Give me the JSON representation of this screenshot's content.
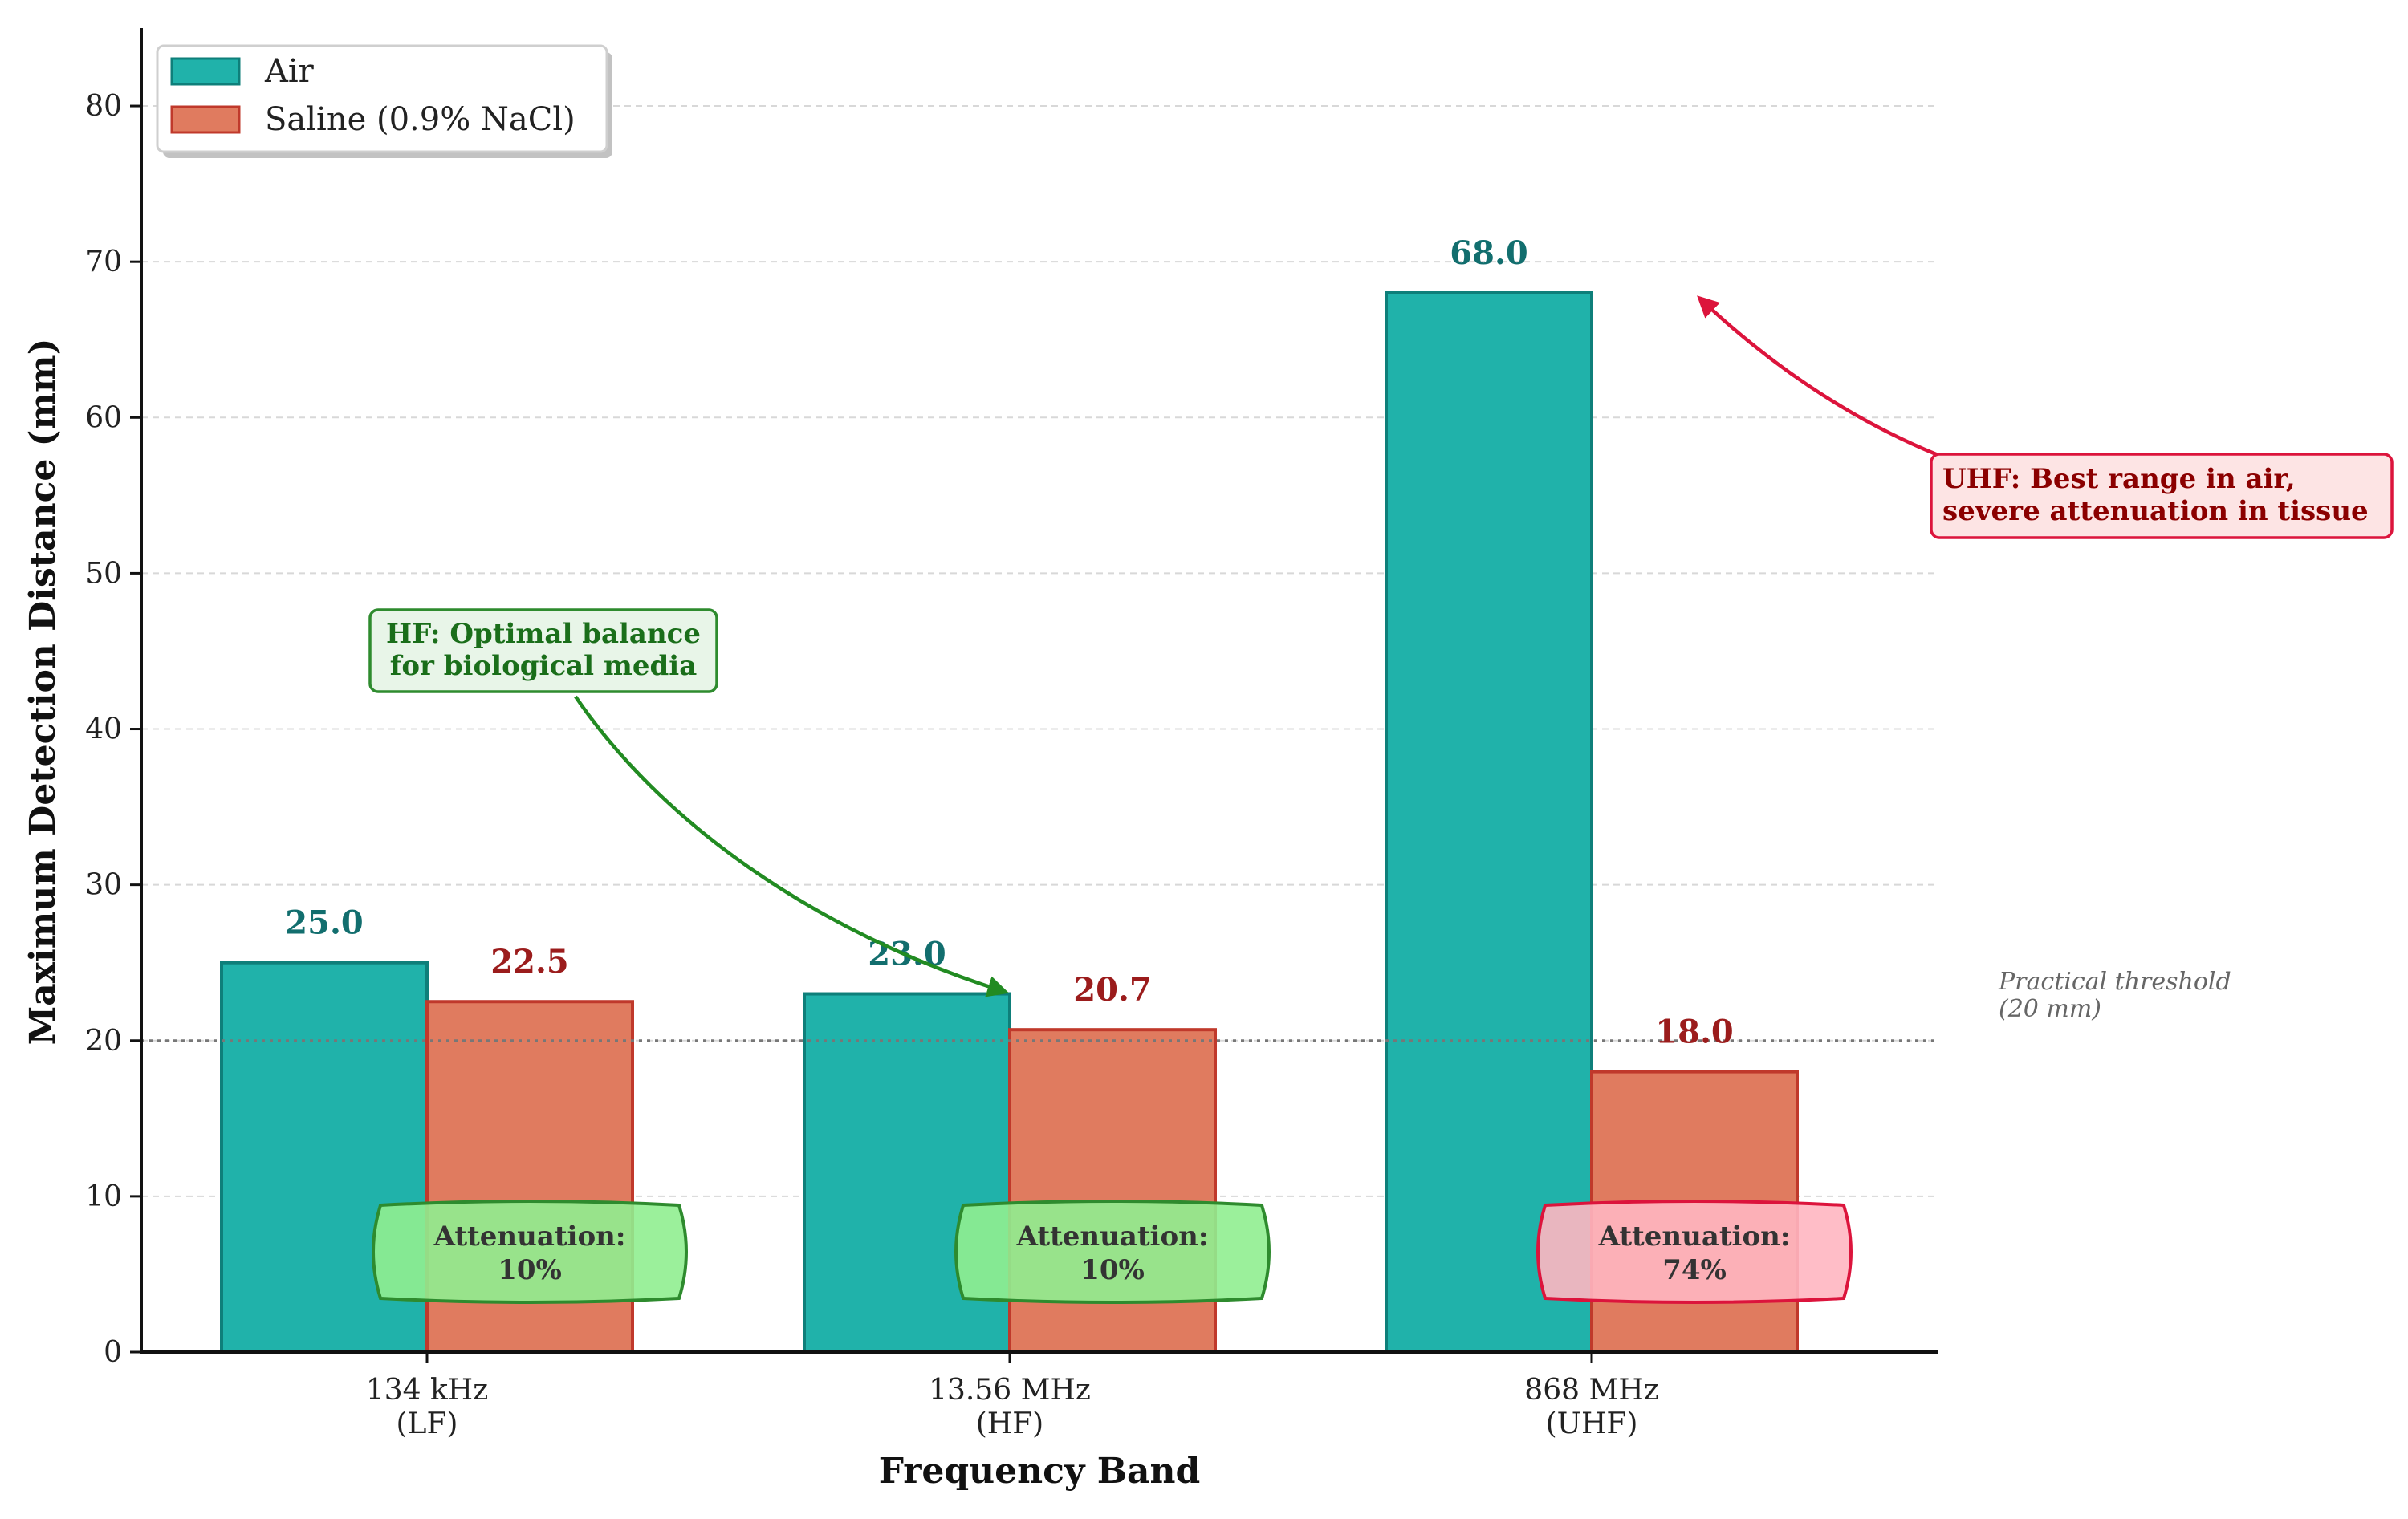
{
  "chart_data": {
    "type": "bar",
    "categories": [
      {
        "line1": "134 kHz",
        "line2": "(LF)"
      },
      {
        "line1": "13.56 MHz",
        "line2": "(HF)"
      },
      {
        "line1": "868 MHz",
        "line2": "(UHF)"
      }
    ],
    "series": [
      {
        "name": "Air",
        "values": [
          25.0,
          23.0,
          68.0
        ],
        "color": "#20b2aa",
        "edge": "#0e7f7a",
        "label_color": "#126e6e"
      },
      {
        "name": "Saline (0.9% NaCl)",
        "values": [
          22.5,
          20.7,
          18.0
        ],
        "color": "#e07b5f",
        "edge": "#c0392b",
        "label_color": "#9b1c1c"
      }
    ],
    "value_labels": [
      [
        "25.0",
        "23.0",
        "68.0"
      ],
      [
        "22.5",
        "20.7",
        "18.0"
      ]
    ],
    "xlabel": "Frequency Band",
    "ylabel": "Maximum Detection Distance (mm)",
    "ylim": [
      0,
      85
    ],
    "yticks": [
      0,
      10,
      20,
      30,
      40,
      50,
      60,
      70,
      80
    ],
    "grid": true,
    "legend_position": "top-left",
    "threshold": {
      "value": 20,
      "label_line1": "Practical threshold",
      "label_line2": "(20 mm)"
    },
    "attenuation_badges": [
      {
        "line1": "Attenuation:",
        "line2": "10%",
        "fill": "#90ee90",
        "stroke": "#2e8b2e"
      },
      {
        "line1": "Attenuation:",
        "line2": "10%",
        "fill": "#90ee90",
        "stroke": "#2e8b2e"
      },
      {
        "line1": "Attenuation:",
        "line2": "74%",
        "fill": "#ffb6c1",
        "stroke": "#dc143c"
      }
    ],
    "annotations": [
      {
        "line1": "HF: Optimal balance",
        "line2": "for biological media",
        "text_color": "#1a6e1a",
        "box_fill": "#e8f5e8",
        "box_stroke": "#2e8b2e",
        "arrow_color": "#228b22"
      },
      {
        "line1": "UHF: Best range in air,",
        "line2": "severe attenuation in tissue",
        "text_color": "#8b0000",
        "box_fill": "#fde4e4",
        "box_stroke": "#dc143c",
        "arrow_color": "#dc143c"
      }
    ]
  }
}
